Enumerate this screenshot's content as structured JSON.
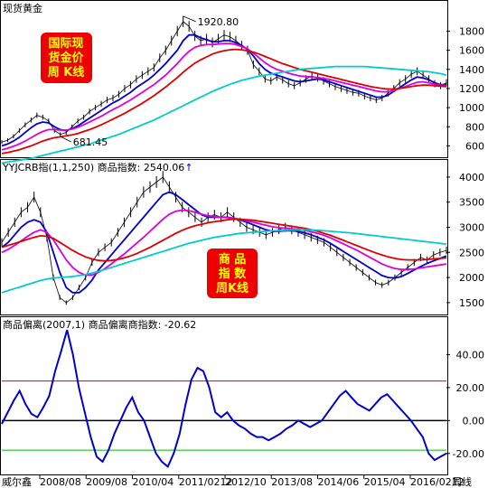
{
  "chart_data": [
    {
      "type": "line",
      "title": "现货黄金",
      "annotation_box": [
        "国际现",
        "货金价",
        "周  K线"
      ],
      "ylim": [
        500,
        2050
      ],
      "yticks": [
        600,
        800,
        1000,
        1200,
        1400,
        1600,
        1800
      ],
      "high_label": "1920.80",
      "low_label": "681.45",
      "series": [
        {
          "key": "price",
          "color": "#000000",
          "kind": "bars",
          "values": [
            640,
            660,
            700,
            760,
            820,
            870,
            920,
            900,
            860,
            760,
            720,
            740,
            800,
            860,
            900,
            960,
            1000,
            1040,
            1080,
            1100,
            1140,
            1200,
            1240,
            1300,
            1340,
            1380,
            1420,
            1520,
            1600,
            1700,
            1800,
            1900,
            1850,
            1750,
            1700,
            1720,
            1680,
            1720,
            1760,
            1740,
            1700,
            1650,
            1600,
            1450,
            1380,
            1300,
            1280,
            1320,
            1290,
            1250,
            1230,
            1260,
            1300,
            1330,
            1310,
            1280,
            1250,
            1220,
            1200,
            1180,
            1160,
            1150,
            1120,
            1100,
            1080,
            1100,
            1150,
            1200,
            1260,
            1300,
            1350,
            1380,
            1340,
            1300,
            1250,
            1230,
            1260
          ]
        },
        {
          "key": "ma_short",
          "color": "#0000cc",
          "kind": "line",
          "values": [
            600,
            620,
            650,
            690,
            740,
            790,
            830,
            850,
            840,
            800,
            770,
            760,
            780,
            810,
            850,
            890,
            930,
            970,
            1010,
            1050,
            1080,
            1120,
            1160,
            1210,
            1250,
            1290,
            1340,
            1400,
            1460,
            1530,
            1600,
            1700,
            1760,
            1760,
            1730,
            1710,
            1690,
            1690,
            1700,
            1700,
            1680,
            1650,
            1610,
            1540,
            1460,
            1400,
            1360,
            1340,
            1320,
            1300,
            1280,
            1270,
            1280,
            1290,
            1300,
            1290,
            1270,
            1250,
            1230,
            1210,
            1190,
            1170,
            1150,
            1130,
            1110,
            1110,
            1130,
            1170,
            1210,
            1250,
            1290,
            1320,
            1310,
            1290,
            1260,
            1240,
            1240
          ]
        },
        {
          "key": "ma_mid",
          "color": "#dd00dd",
          "kind": "line",
          "values": [
            560,
            575,
            595,
            620,
            650,
            685,
            720,
            750,
            770,
            770,
            765,
            765,
            775,
            795,
            820,
            850,
            880,
            910,
            945,
            980,
            1010,
            1045,
            1080,
            1120,
            1160,
            1200,
            1240,
            1290,
            1340,
            1400,
            1460,
            1530,
            1590,
            1630,
            1650,
            1660,
            1660,
            1665,
            1670,
            1670,
            1660,
            1640,
            1615,
            1570,
            1520,
            1470,
            1430,
            1400,
            1380,
            1360,
            1345,
            1330,
            1325,
            1320,
            1315,
            1305,
            1295,
            1280,
            1265,
            1250,
            1235,
            1220,
            1205,
            1190,
            1175,
            1165,
            1165,
            1180,
            1200,
            1220,
            1245,
            1265,
            1270,
            1260,
            1245,
            1235,
            1230
          ]
        },
        {
          "key": "ma_long",
          "color": "#dd0000",
          "kind": "line",
          "values": [
            520,
            530,
            545,
            560,
            580,
            600,
            625,
            650,
            670,
            685,
            695,
            705,
            715,
            730,
            750,
            770,
            795,
            820,
            850,
            880,
            910,
            940,
            975,
            1010,
            1045,
            1085,
            1125,
            1170,
            1215,
            1265,
            1315,
            1370,
            1420,
            1465,
            1500,
            1530,
            1560,
            1580,
            1595,
            1605,
            1610,
            1605,
            1595,
            1580,
            1560,
            1535,
            1510,
            1485,
            1460,
            1440,
            1420,
            1400,
            1385,
            1370,
            1355,
            1340,
            1325,
            1310,
            1295,
            1280,
            1265,
            1250,
            1235,
            1220,
            1210,
            1200,
            1195,
            1195,
            1200,
            1210,
            1220,
            1230,
            1235,
            1235,
            1230,
            1225,
            1220
          ]
        },
        {
          "key": "ma_xlong",
          "color": "#00cccc",
          "kind": "line",
          "values": [
            420,
            430,
            440,
            450,
            460,
            470,
            485,
            500,
            515,
            530,
            545,
            560,
            575,
            590,
            605,
            620,
            640,
            660,
            680,
            700,
            720,
            745,
            770,
            795,
            820,
            845,
            870,
            900,
            930,
            960,
            990,
            1020,
            1050,
            1080,
            1110,
            1140,
            1170,
            1195,
            1220,
            1245,
            1265,
            1285,
            1300,
            1315,
            1330,
            1340,
            1350,
            1360,
            1370,
            1380,
            1390,
            1400,
            1405,
            1410,
            1415,
            1420,
            1425,
            1430,
            1430,
            1430,
            1430,
            1430,
            1430,
            1425,
            1420,
            1415,
            1410,
            1405,
            1400,
            1395,
            1390,
            1385,
            1380,
            1375,
            1365,
            1355,
            1340
          ]
        }
      ]
    },
    {
      "type": "line",
      "title": "YYJCRB指(1,1,250) 商品指数: 2540.06",
      "arrow": "↑",
      "annotation_box": [
        "商  品",
        "指  数",
        "周K线"
      ],
      "ylim": [
        1300,
        4250
      ],
      "yticks": [
        1500,
        2000,
        2500,
        3000,
        3500,
        4000
      ],
      "series": [
        {
          "key": "price",
          "color": "#000000",
          "kind": "bars",
          "values": [
            2700,
            2900,
            3100,
            3300,
            3400,
            3600,
            3300,
            2800,
            2000,
            1600,
            1500,
            1600,
            1800,
            2000,
            2300,
            2500,
            2600,
            2700,
            2900,
            3100,
            3300,
            3500,
            3700,
            3800,
            3900,
            4000,
            3800,
            3600,
            3400,
            3300,
            3200,
            3100,
            3200,
            3250,
            3200,
            3300,
            3200,
            3100,
            3000,
            2950,
            2900,
            2850,
            2900,
            2950,
            3000,
            2950,
            2900,
            2850,
            2800,
            2750,
            2700,
            2600,
            2500,
            2400,
            2300,
            2200,
            2100,
            2000,
            1900,
            1850,
            1900,
            2000,
            2100,
            2200,
            2300,
            2400,
            2350,
            2450,
            2500,
            2540
          ]
        },
        {
          "key": "ma_short",
          "color": "#0000cc",
          "kind": "line",
          "values": [
            2600,
            2700,
            2850,
            3000,
            3100,
            3150,
            3100,
            2900,
            2500,
            2100,
            1800,
            1700,
            1700,
            1800,
            1950,
            2150,
            2300,
            2450,
            2600,
            2750,
            2900,
            3050,
            3200,
            3350,
            3500,
            3650,
            3700,
            3650,
            3550,
            3450,
            3350,
            3250,
            3200,
            3200,
            3200,
            3200,
            3180,
            3150,
            3100,
            3050,
            3000,
            2950,
            2920,
            2920,
            2930,
            2930,
            2920,
            2890,
            2850,
            2800,
            2750,
            2680,
            2600,
            2520,
            2440,
            2360,
            2280,
            2200,
            2120,
            2040,
            2000,
            1990,
            2020,
            2080,
            2150,
            2220,
            2280,
            2330,
            2380,
            2430
          ]
        },
        {
          "key": "ma_mid",
          "color": "#dd00dd",
          "kind": "line",
          "values": [
            2500,
            2560,
            2640,
            2730,
            2820,
            2900,
            2950,
            2900,
            2750,
            2550,
            2350,
            2200,
            2100,
            2050,
            2050,
            2100,
            2180,
            2270,
            2370,
            2470,
            2580,
            2690,
            2800,
            2920,
            3040,
            3160,
            3260,
            3320,
            3340,
            3330,
            3300,
            3260,
            3230,
            3210,
            3200,
            3190,
            3180,
            3160,
            3130,
            3100,
            3070,
            3040,
            3010,
            2990,
            2980,
            2970,
            2960,
            2940,
            2910,
            2880,
            2840,
            2790,
            2730,
            2670,
            2610,
            2550,
            2480,
            2410,
            2340,
            2270,
            2220,
            2180,
            2160,
            2160,
            2170,
            2190,
            2210,
            2230,
            2250,
            2270
          ]
        },
        {
          "key": "ma_long",
          "color": "#dd0000",
          "kind": "line",
          "values": [
            2600,
            2640,
            2680,
            2720,
            2760,
            2800,
            2830,
            2820,
            2780,
            2700,
            2620,
            2540,
            2470,
            2410,
            2370,
            2340,
            2330,
            2340,
            2360,
            2390,
            2430,
            2480,
            2540,
            2600,
            2670,
            2740,
            2810,
            2880,
            2940,
            2990,
            3030,
            3060,
            3090,
            3110,
            3130,
            3150,
            3160,
            3160,
            3150,
            3140,
            3120,
            3100,
            3080,
            3060,
            3040,
            3020,
            3000,
            2980,
            2950,
            2920,
            2880,
            2840,
            2790,
            2740,
            2690,
            2640,
            2590,
            2540,
            2490,
            2450,
            2410,
            2380,
            2360,
            2350,
            2350,
            2350,
            2360,
            2370,
            2380,
            2390
          ]
        },
        {
          "key": "ma_xlong",
          "color": "#00cccc",
          "kind": "line",
          "values": [
            1700,
            1740,
            1780,
            1820,
            1860,
            1900,
            1940,
            1970,
            1990,
            2000,
            2010,
            2020,
            2040,
            2060,
            2090,
            2120,
            2160,
            2200,
            2240,
            2280,
            2320,
            2360,
            2400,
            2440,
            2480,
            2520,
            2560,
            2600,
            2640,
            2680,
            2710,
            2740,
            2770,
            2800,
            2820,
            2840,
            2860,
            2880,
            2890,
            2900,
            2910,
            2920,
            2930,
            2935,
            2940,
            2945,
            2950,
            2950,
            2945,
            2940,
            2930,
            2920,
            2910,
            2900,
            2890,
            2875,
            2860,
            2845,
            2830,
            2815,
            2800,
            2785,
            2770,
            2755,
            2740,
            2725,
            2710,
            2695,
            2680,
            2665
          ]
        }
      ]
    },
    {
      "type": "line",
      "title": "商品偏离(2007,1) 商品偏离商指数: -20.62",
      "ylim": [
        -30,
        60
      ],
      "yticks": [
        -20,
        0,
        20,
        40
      ],
      "ytick_labels": [
        "-20.00",
        "0.00",
        "20.00",
        "40.00"
      ],
      "reference_lines": [
        {
          "value": 24,
          "color": "#dd0000"
        },
        {
          "value": 0,
          "color": "#000000"
        },
        {
          "value": -18,
          "color": "#00bb00"
        }
      ],
      "series": [
        {
          "key": "deviation",
          "color": "#0000cc",
          "kind": "line",
          "values": [
            -2,
            5,
            12,
            18,
            10,
            4,
            2,
            8,
            15,
            30,
            42,
            55,
            40,
            20,
            5,
            -10,
            -22,
            -25,
            -18,
            -8,
            0,
            8,
            14,
            5,
            0,
            -10,
            -20,
            -25,
            -28,
            -20,
            -8,
            10,
            25,
            32,
            30,
            20,
            5,
            2,
            5,
            0,
            -3,
            -5,
            -8,
            -10,
            -10,
            -12,
            -10,
            -8,
            -5,
            -3,
            0,
            -2,
            -4,
            -2,
            0,
            5,
            10,
            15,
            18,
            14,
            10,
            8,
            6,
            10,
            14,
            16,
            12,
            8,
            4,
            0,
            -5,
            -10,
            -20,
            -24,
            -22,
            -20
          ]
        }
      ]
    }
  ],
  "x_axis": {
    "labels": [
      "2008/08",
      "2009/08",
      "2010/04",
      "2011/0212",
      "2012/10",
      "2013/08",
      "2014/06",
      "2015/04",
      "2016/0212"
    ],
    "end_label": "周线",
    "left_label": "威尔鑫"
  }
}
